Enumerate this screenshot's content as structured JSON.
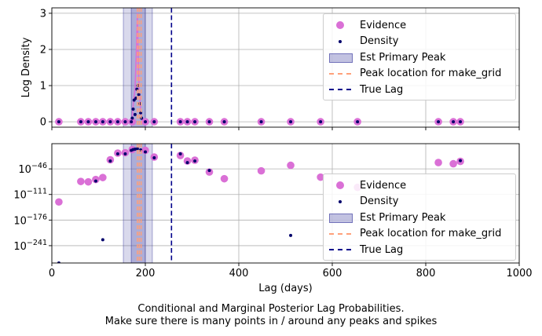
{
  "chart_data": [
    {
      "type": "scatter",
      "panel": "top",
      "xlabel": "",
      "ylabel": "Log Density",
      "xlim": [
        0,
        1000
      ],
      "ylim": [
        -0.15,
        3.15
      ],
      "yscale": "linear",
      "y_ticks": [
        0,
        1,
        2,
        3
      ],
      "y_tick_labels": [
        "0",
        "1",
        "2",
        "3"
      ],
      "x_ticks": [
        0,
        200,
        400,
        600,
        800,
        1000
      ],
      "x_tick_labels_visible": false,
      "grid": true,
      "legend_position": "upper right",
      "legend": [
        "Evidence",
        "Density",
        "Est Primary Peak",
        "Peak location for make_grid",
        "True Lag"
      ],
      "series": [
        {
          "name": "Evidence",
          "marker": "large circle",
          "color": "#da70d6",
          "points": [
            [
              15,
              0
            ],
            [
              62,
              0
            ],
            [
              78,
              0
            ],
            [
              94,
              0
            ],
            [
              109,
              0
            ],
            [
              125,
              0
            ],
            [
              141,
              0
            ],
            [
              157,
              0
            ],
            [
              172,
              0
            ],
            [
              200,
              0
            ],
            [
              219,
              0
            ],
            [
              275,
              0
            ],
            [
              290,
              0
            ],
            [
              306,
              0
            ],
            [
              337,
              0
            ],
            [
              369,
              0
            ],
            [
              448,
              0
            ],
            [
              511,
              0
            ],
            [
              575,
              0
            ],
            [
              654,
              0
            ],
            [
              827,
              0
            ],
            [
              859,
              0
            ],
            [
              874,
              0
            ]
          ]
        },
        {
          "name": "Density",
          "marker": "small dot",
          "color": "#00006b",
          "points": [
            [
              15,
              0
            ],
            [
              62,
              0
            ],
            [
              78,
              0
            ],
            [
              94,
              0
            ],
            [
              109,
              0
            ],
            [
              125,
              0
            ],
            [
              141,
              0
            ],
            [
              157,
              0
            ],
            [
              170,
              0
            ],
            [
              172,
              0.1
            ],
            [
              174,
              0.35
            ],
            [
              176,
              0.6
            ],
            [
              178,
              0.2
            ],
            [
              180,
              0.65
            ],
            [
              182,
              0.9
            ],
            [
              184,
              1.0
            ],
            [
              186,
              0.75
            ],
            [
              188,
              0.5
            ],
            [
              190,
              0.25
            ],
            [
              192,
              0.1
            ],
            [
              200,
              0
            ],
            [
              219,
              0
            ],
            [
              275,
              0
            ],
            [
              290,
              0
            ],
            [
              306,
              0
            ],
            [
              337,
              0
            ],
            [
              369,
              0
            ],
            [
              448,
              0
            ],
            [
              511,
              0
            ],
            [
              575,
              0
            ],
            [
              654,
              0
            ],
            [
              827,
              0
            ],
            [
              859,
              0
            ],
            [
              874,
              0
            ]
          ]
        },
        {
          "name": "Density curve",
          "color": "#da70d6",
          "points": [
            [
              168,
              0
            ],
            [
              172,
              0.15
            ],
            [
              175,
              0.6
            ],
            [
              178,
              0.9
            ],
            [
              181,
              2.0
            ],
            [
              183,
              3.0
            ],
            [
              185,
              1.6
            ],
            [
              187,
              0.8
            ],
            [
              189,
              0.5
            ],
            [
              191,
              0.2
            ],
            [
              194,
              0
            ]
          ]
        }
      ],
      "est_primary_peak": {
        "inner": [
          170,
          200
        ],
        "outer": [
          153,
          215
        ],
        "color": "#5050aa"
      },
      "peak_location_for_make_grid": [
        183,
        187,
        191
      ],
      "true_lag": 256
    },
    {
      "type": "scatter",
      "panel": "bottom",
      "xlabel": "Lag (days)",
      "ylabel": "",
      "xlim": [
        0,
        1000
      ],
      "yscale": "log",
      "ylim_exponent": [
        -285,
        18
      ],
      "y_ticks_exponent": [
        -46,
        -111,
        -176,
        -241
      ],
      "y_tick_labels": [
        "10^−46",
        "10^−111",
        "10^−176",
        "10^−241"
      ],
      "x_ticks": [
        0,
        200,
        400,
        600,
        800,
        1000
      ],
      "x_tick_labels": [
        "0",
        "200",
        "400",
        "600",
        "800",
        "1000"
      ],
      "grid": true,
      "legend_position": "lower right",
      "legend": [
        "Evidence",
        "Density",
        "Est Primary Peak",
        "Peak location for make_grid",
        "True Lag"
      ],
      "series": [
        {
          "name": "Evidence",
          "marker": "large circle",
          "color": "#da70d6",
          "exponents": [
            [
              15,
              -130
            ],
            [
              62,
              -78
            ],
            [
              78,
              -79
            ],
            [
              94,
              -73
            ],
            [
              109,
              -68
            ],
            [
              125,
              -23
            ],
            [
              141,
              -6
            ],
            [
              157,
              -5
            ],
            [
              172,
              3
            ],
            [
              200,
              1
            ],
            [
              219,
              -16
            ],
            [
              275,
              -12
            ],
            [
              290,
              -26
            ],
            [
              306,
              -24
            ],
            [
              337,
              -54
            ],
            [
              369,
              -71
            ],
            [
              448,
              -51
            ],
            [
              511,
              -37
            ],
            [
              575,
              -67
            ],
            [
              654,
              -93
            ],
            [
              827,
              -30
            ],
            [
              859,
              -33
            ],
            [
              874,
              -27
            ]
          ]
        },
        {
          "name": "Density",
          "marker": "small dot",
          "color": "#00006b",
          "exponents": [
            [
              15,
              -285
            ],
            [
              94,
              -77
            ],
            [
              109,
              -226
            ],
            [
              125,
              -26
            ],
            [
              141,
              -8
            ],
            [
              157,
              -8
            ],
            [
              170,
              1
            ],
            [
              174,
              3
            ],
            [
              178,
              4
            ],
            [
              183,
              5
            ],
            [
              190,
              2
            ],
            [
              200,
              -3
            ],
            [
              219,
              -18
            ],
            [
              275,
              -8
            ],
            [
              290,
              -30
            ],
            [
              306,
              -26
            ],
            [
              337,
              -50
            ],
            [
              511,
              -215
            ],
            [
              874,
              -25
            ]
          ]
        }
      ],
      "est_primary_peak": {
        "inner": [
          170,
          200
        ],
        "outer": [
          153,
          215
        ],
        "color": "#5050aa"
      },
      "peak_location_for_make_grid": [
        183,
        187,
        191
      ],
      "true_lag": 256
    }
  ],
  "legend_items": {
    "evidence": "Evidence",
    "density": "Density",
    "est_primary_peak": "Est Primary Peak",
    "peak_location": "Peak location for make_grid",
    "true_lag": "True Lag"
  },
  "caption": {
    "line1": "Conditional and Marginal Posterior Lag Probabilities.",
    "line2": "Make sure there is many points in / around any peaks and spikes"
  }
}
